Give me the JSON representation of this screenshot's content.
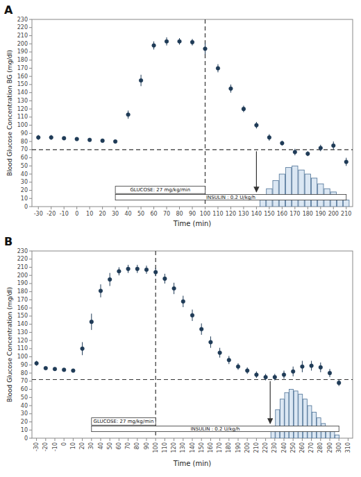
{
  "chart_data": [
    {
      "type": "scatter",
      "title": "A",
      "marker": "circle",
      "x_label": "Time (min)",
      "y_label": "Blood Glucose Concentration BG (mg/dl)",
      "x": [
        -30,
        -20,
        -10,
        0,
        10,
        20,
        30,
        40,
        50,
        60,
        70,
        80,
        90,
        100,
        110,
        120,
        130,
        140,
        150,
        160,
        170,
        180,
        190,
        200,
        210
      ],
      "values": [
        85,
        85,
        84,
        83,
        82,
        81,
        80,
        113,
        155,
        198,
        203,
        203,
        202,
        194,
        170,
        145,
        120,
        100,
        85,
        78,
        67,
        65,
        72,
        75,
        55
      ],
      "errors": [
        3,
        3,
        2,
        2,
        2,
        2,
        2,
        5,
        7,
        5,
        5,
        4,
        4,
        7,
        5,
        5,
        4,
        4,
        4,
        3,
        4,
        3,
        4,
        5,
        5
      ],
      "xlim": [
        -35,
        215
      ],
      "ylim": [
        0,
        230
      ],
      "xticks": [
        -30,
        -20,
        -10,
        0,
        10,
        20,
        30,
        40,
        50,
        60,
        70,
        80,
        90,
        100,
        110,
        120,
        130,
        140,
        150,
        160,
        170,
        180,
        190,
        200,
        210
      ],
      "yticks": [
        0,
        10,
        20,
        30,
        40,
        50,
        60,
        70,
        80,
        90,
        100,
        110,
        120,
        130,
        140,
        150,
        160,
        170,
        180,
        190,
        200,
        210,
        220,
        230
      ],
      "hypoglycemia_line": 70,
      "vertical_line": 100,
      "arrow": {
        "x": 140,
        "y_start": 68,
        "y_end": 18
      },
      "infusion_bars": {
        "x": [
          145,
          150,
          155,
          160,
          165,
          170,
          175,
          180,
          185,
          190,
          195,
          200,
          205,
          210
        ],
        "values": [
          8,
          22,
          32,
          40,
          48,
          50,
          45,
          40,
          35,
          28,
          22,
          18,
          12,
          8
        ]
      },
      "insulin_bar": {
        "label": "INSULIN : 0.2 U/kg/h",
        "x": [
          30,
          210
        ],
        "y": [
          8,
          15
        ]
      },
      "glucose_bar": {
        "label": "GLUCOSE: 27 mg/kg/min",
        "x": [
          30,
          100
        ],
        "y": [
          16,
          25
        ]
      }
    },
    {
      "type": "scatter",
      "title": "B",
      "marker": "circle",
      "x_label": "Time (min)",
      "y_label": "Blood Glucose Concentration (mg/dl)",
      "x": [
        -30,
        -20,
        -10,
        0,
        10,
        20,
        30,
        40,
        50,
        60,
        70,
        80,
        90,
        100,
        110,
        120,
        130,
        140,
        150,
        160,
        170,
        180,
        190,
        200,
        210,
        220,
        230,
        240,
        250,
        260,
        270,
        280,
        290,
        300
      ],
      "values": [
        92,
        86,
        85,
        84,
        83,
        110,
        143,
        181,
        195,
        205,
        208,
        208,
        207,
        204,
        196,
        184,
        168,
        151,
        134,
        118,
        105,
        96,
        88,
        83,
        78,
        75,
        75,
        78,
        82,
        88,
        89,
        87,
        80,
        68
      ],
      "errors": [
        3,
        2,
        2,
        2,
        2,
        8,
        10,
        8,
        8,
        5,
        5,
        5,
        5,
        5,
        6,
        7,
        7,
        7,
        7,
        7,
        6,
        5,
        4,
        4,
        4,
        4,
        4,
        5,
        6,
        7,
        6,
        6,
        5,
        4
      ],
      "xlim": [
        -35,
        315
      ],
      "ylim": [
        0,
        230
      ],
      "xticks": [
        -30,
        -20,
        -10,
        0,
        10,
        20,
        30,
        40,
        50,
        60,
        70,
        80,
        90,
        100,
        110,
        120,
        130,
        140,
        150,
        160,
        170,
        180,
        190,
        200,
        210,
        220,
        230,
        240,
        250,
        260,
        270,
        280,
        290,
        300,
        310
      ],
      "yticks": [
        0,
        10,
        20,
        30,
        40,
        50,
        60,
        70,
        80,
        90,
        100,
        110,
        120,
        130,
        140,
        150,
        160,
        170,
        180,
        190,
        200,
        210,
        220,
        230
      ],
      "hypoglycemia_line": 72,
      "vertical_line": 100,
      "arrow": {
        "x": 225,
        "y_start": 70,
        "y_end": 18
      },
      "infusion_bars": {
        "x": [
          228,
          233,
          238,
          243,
          248,
          253,
          258,
          263,
          268,
          273,
          278,
          283,
          288,
          293,
          298
        ],
        "values": [
          15,
          35,
          48,
          56,
          60,
          58,
          54,
          48,
          40,
          32,
          25,
          18,
          12,
          8,
          4
        ]
      },
      "insulin_bar": {
        "label": "INSULIN : 0.2 U/kg/h",
        "x": [
          30,
          300
        ],
        "y": [
          8,
          15
        ]
      },
      "glucose_bar": {
        "label": "GLUCOSE: 27 mg/kg/min",
        "x": [
          30,
          100
        ],
        "y": [
          16,
          25
        ]
      }
    }
  ]
}
